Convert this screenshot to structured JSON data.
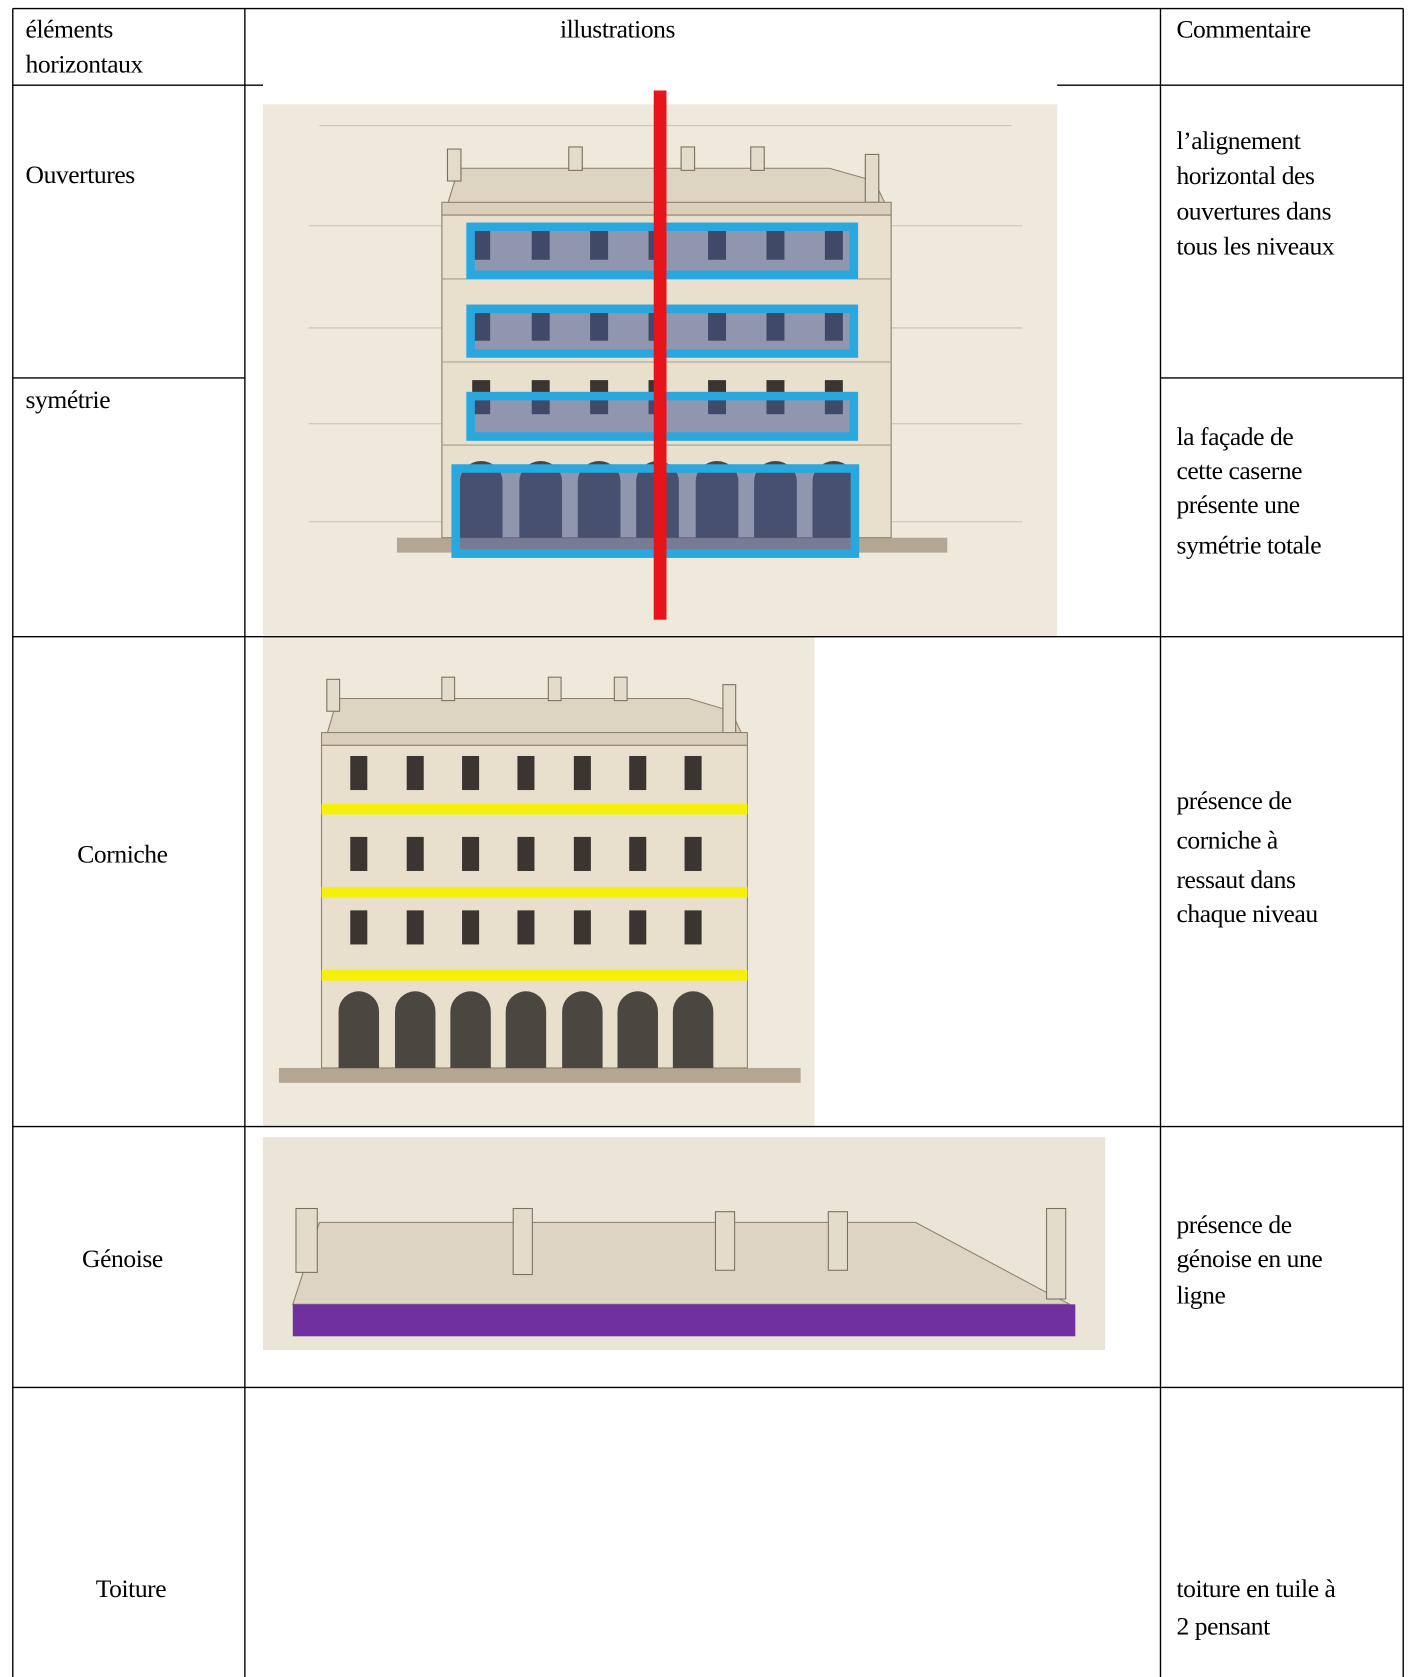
{
  "header": {
    "col1": [
      "éléments",
      "horizontaux"
    ],
    "col2": "illustrations",
    "col3": "Commentaire"
  },
  "rows": [
    {
      "label": "Ouvertures",
      "comment": [
        "l’alignement",
        "horizontal des",
        "ouvertures dans",
        "tous les niveaux"
      ]
    },
    {
      "label": "symétrie",
      "comment": [
        "la façade de",
        "cette caserne",
        "présente une",
        "symétrie totale"
      ]
    },
    {
      "label": "Corniche",
      "comment": [
        "présence de",
        "corniche à",
        "ressaut dans",
        "chaque niveau"
      ]
    },
    {
      "label": "Génoise",
      "comment": [
        "présence de",
        "génoise en une",
        "ligne"
      ]
    },
    {
      "label": "Toiture",
      "comment": [
        "toiture en tuile à",
        "2 pensant"
      ]
    }
  ]
}
